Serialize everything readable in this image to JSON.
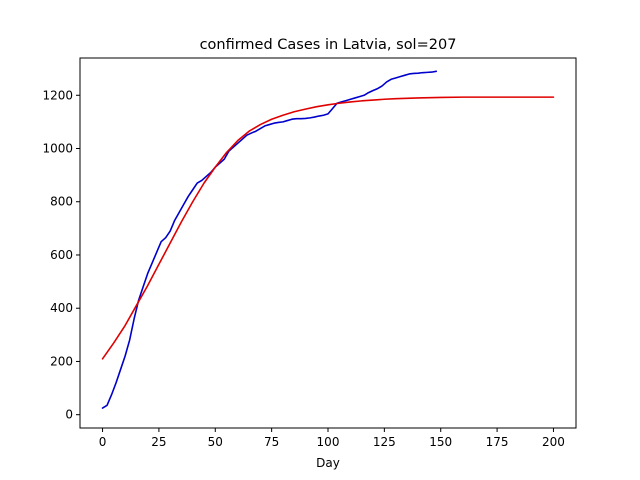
{
  "chart_data": {
    "type": "line",
    "title": "confirmed Cases in Latvia, sol=207",
    "xlabel": "Day",
    "ylabel": "",
    "xlim": [
      -10,
      210
    ],
    "ylim": [
      -50,
      1340
    ],
    "xticks": [
      0,
      25,
      50,
      75,
      100,
      125,
      150,
      175,
      200
    ],
    "yticks": [
      0,
      200,
      400,
      600,
      800,
      1000,
      1200
    ],
    "grid": false,
    "legend": "none",
    "series": [
      {
        "color": "#0000cc",
        "x": [
          0,
          2,
          4,
          6,
          8,
          10,
          12,
          14,
          16,
          18,
          20,
          22,
          24,
          26,
          28,
          30,
          32,
          34,
          36,
          38,
          40,
          42,
          44,
          46,
          48,
          50,
          52,
          54,
          56,
          58,
          60,
          62,
          64,
          66,
          68,
          70,
          72,
          74,
          76,
          78,
          80,
          82,
          84,
          86,
          88,
          90,
          92,
          94,
          96,
          98,
          100,
          102,
          104,
          106,
          108,
          110,
          112,
          114,
          116,
          118,
          120,
          122,
          124,
          126,
          128,
          130,
          132,
          134,
          136,
          138,
          140,
          142,
          144,
          146,
          148
        ],
        "values": [
          25,
          35,
          75,
          120,
          170,
          220,
          280,
          360,
          430,
          480,
          530,
          570,
          610,
          650,
          665,
          690,
          730,
          760,
          790,
          820,
          845,
          870,
          880,
          895,
          910,
          930,
          945,
          960,
          990,
          1005,
          1020,
          1035,
          1050,
          1058,
          1065,
          1075,
          1085,
          1090,
          1095,
          1098,
          1100,
          1105,
          1110,
          1112,
          1112,
          1113,
          1115,
          1118,
          1122,
          1125,
          1130,
          1150,
          1170,
          1175,
          1180,
          1185,
          1190,
          1195,
          1200,
          1210,
          1218,
          1225,
          1235,
          1250,
          1260,
          1265,
          1270,
          1275,
          1280,
          1282,
          1283,
          1285,
          1286,
          1287,
          1290
        ]
      },
      {
        "color": "#e00000",
        "x": [
          0,
          5,
          10,
          15,
          20,
          25,
          30,
          35,
          40,
          45,
          50,
          55,
          60,
          65,
          70,
          75,
          80,
          85,
          90,
          95,
          100,
          105,
          110,
          115,
          120,
          125,
          130,
          140,
          150,
          160,
          170,
          180,
          190,
          200
        ],
        "values": [
          210,
          270,
          335,
          410,
          485,
          565,
          645,
          725,
          800,
          870,
          930,
          985,
          1030,
          1065,
          1090,
          1110,
          1125,
          1138,
          1148,
          1157,
          1164,
          1170,
          1175,
          1179,
          1182,
          1185,
          1187,
          1190,
          1192,
          1193,
          1193,
          1193,
          1193,
          1193
        ]
      }
    ]
  }
}
